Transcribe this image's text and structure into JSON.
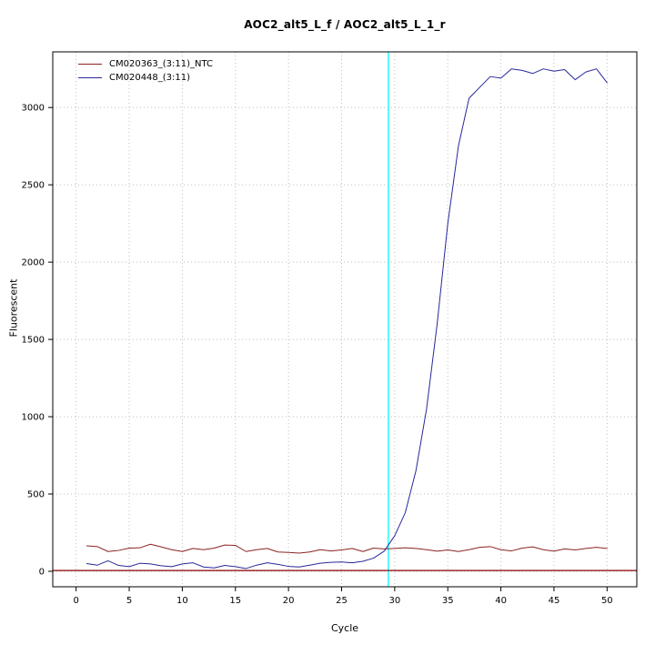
{
  "chart_data": {
    "type": "line",
    "title": "AOC2_alt5_L_f / AOC2_alt5_L_1_r",
    "xlabel": "Cycle",
    "ylabel": "Fluorescent",
    "xlim": [
      -2.2,
      52.8
    ],
    "ylim": [
      -100,
      3360
    ],
    "x_ticks": [
      0,
      5,
      10,
      15,
      20,
      25,
      30,
      35,
      40,
      45,
      50
    ],
    "y_ticks": [
      0,
      500,
      1000,
      1500,
      2000,
      2500,
      3000
    ],
    "grid": "dotted",
    "legend_position": "top-left",
    "threshold_line": {
      "cycle": 29.4,
      "color": "#00ffff"
    },
    "baseline_line": {
      "value": 5,
      "color": "#8b0000"
    },
    "x": [
      1,
      2,
      3,
      4,
      5,
      6,
      7,
      8,
      9,
      10,
      11,
      12,
      13,
      14,
      15,
      16,
      17,
      18,
      19,
      20,
      21,
      22,
      23,
      24,
      25,
      26,
      27,
      28,
      29,
      30,
      31,
      32,
      33,
      34,
      35,
      36,
      37,
      38,
      39,
      40,
      41,
      42,
      43,
      44,
      45,
      46,
      47,
      48,
      49,
      50
    ],
    "series": [
      {
        "name": "CM020363_(3:11)_NTC",
        "color": "#8b2323",
        "values": [
          165,
          160,
          128,
          135,
          150,
          152,
          175,
          158,
          140,
          128,
          148,
          140,
          150,
          170,
          168,
          128,
          140,
          148,
          125,
          122,
          118,
          125,
          140,
          132,
          138,
          148,
          128,
          150,
          145,
          148,
          152,
          148,
          140,
          130,
          138,
          128,
          140,
          155,
          160,
          140,
          132,
          150,
          158,
          140,
          130,
          145,
          138,
          148,
          155,
          148
        ]
      },
      {
        "name": "CM020448_(3:11)",
        "color": "#28289b",
        "values": [
          50,
          40,
          68,
          38,
          30,
          52,
          48,
          36,
          30,
          48,
          55,
          28,
          22,
          38,
          30,
          18,
          40,
          55,
          45,
          32,
          28,
          40,
          52,
          58,
          60,
          55,
          65,
          85,
          130,
          230,
          380,
          650,
          1050,
          1600,
          2250,
          2750,
          3060,
          3130,
          3200,
          3190,
          3250,
          3240,
          3220,
          3250,
          3235,
          3245,
          3180,
          3230,
          3250,
          3160
        ]
      }
    ]
  }
}
